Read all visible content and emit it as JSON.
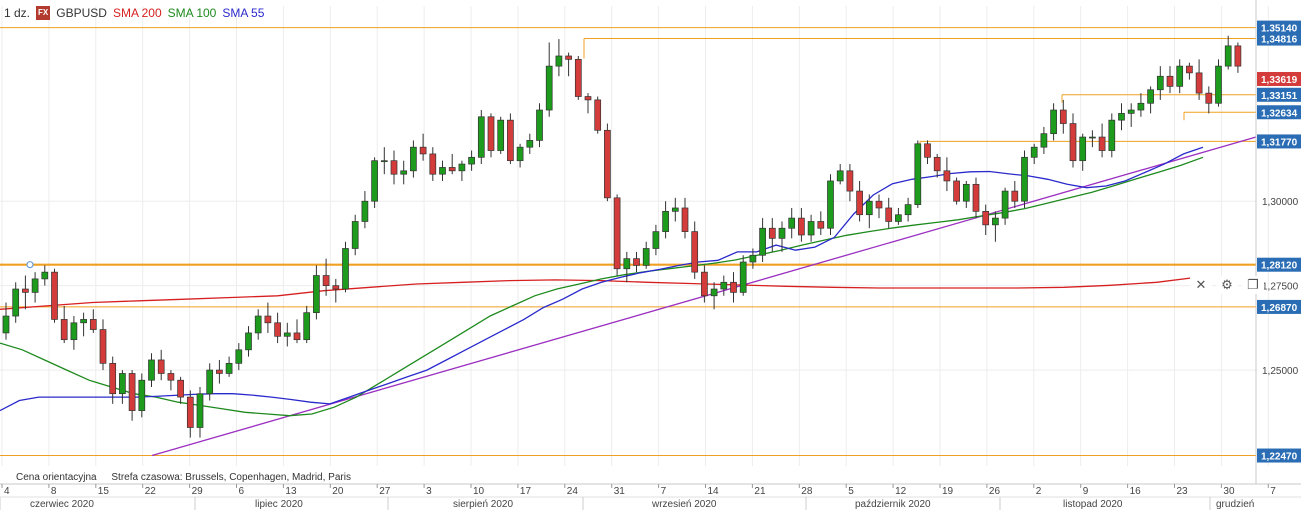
{
  "header": {
    "timeframe": "1 dz.",
    "badge": "FX",
    "symbol": "GBPUSD",
    "indicators": [
      {
        "label": "SMA 200",
        "color": "#d62020"
      },
      {
        "label": "SMA 100",
        "color": "#1e8a1e"
      },
      {
        "label": "SMA 55",
        "color": "#2a2acc"
      }
    ]
  },
  "footer": {
    "price_note": "Cena orientacyjna",
    "timezone": "Strefa czasowa: Brussels, Copenhagen, Madrid, Paris"
  },
  "controls": {
    "close": "✕",
    "settings": "⚙",
    "restore": "❐"
  },
  "icons": [
    "close-icon",
    "gear-icon",
    "restore-icon"
  ],
  "chart_data": {
    "type": "candlestick",
    "x_tick_labels": [
      "4",
      "8",
      "15",
      "22",
      "29",
      "6",
      "13",
      "20",
      "27",
      "3",
      "10",
      "17",
      "24",
      "31",
      "7",
      "14",
      "21",
      "28",
      "5",
      "12",
      "19",
      "26",
      "2",
      "9",
      "16",
      "23",
      "30",
      "7"
    ],
    "month_labels": [
      "czerwiec 2020",
      "lipiec 2020",
      "sierpień 2020",
      "wrzesień 2020",
      "październik 2020",
      "listopad 2020",
      "grudzień"
    ],
    "y_tick_labels": [
      "1,30000",
      "1,27500",
      "1,25000"
    ],
    "level_labels": [
      {
        "label": "1,35140",
        "value": 1.3514
      },
      {
        "label": "1,34816",
        "value": 1.34816
      },
      {
        "label": "1,33151",
        "value": 1.33151
      },
      {
        "label": "1,32634",
        "value": 1.32634
      },
      {
        "label": "1,31770",
        "value": 1.3177
      },
      {
        "label": "1,28120",
        "value": 1.2812
      },
      {
        "label": "1,26870",
        "value": 1.2687
      },
      {
        "label": "1,22470",
        "value": 1.2247
      }
    ],
    "last_price_label": "1,33619",
    "last_price": 1.33619,
    "ylim": [
      1.2216,
      1.3578
    ],
    "colors": {
      "up": "#1c9b1c",
      "down": "#d43c3c",
      "levels": "#f0a020",
      "trendline": "#9b2fc0",
      "grid": "#ededed"
    },
    "candles": [
      [
        1.261,
        1.27,
        1.259,
        1.266
      ],
      [
        1.266,
        1.276,
        1.264,
        1.274
      ],
      [
        1.274,
        1.278,
        1.268,
        1.273
      ],
      [
        1.273,
        1.279,
        1.27,
        1.277
      ],
      [
        1.277,
        1.281,
        1.275,
        1.279
      ],
      [
        1.279,
        1.28,
        1.264,
        1.265
      ],
      [
        1.265,
        1.269,
        1.258,
        1.259
      ],
      [
        1.259,
        1.266,
        1.256,
        1.264
      ],
      [
        1.264,
        1.267,
        1.26,
        1.265
      ],
      [
        1.265,
        1.268,
        1.261,
        1.262
      ],
      [
        1.262,
        1.265,
        1.25,
        1.252
      ],
      [
        1.252,
        1.254,
        1.24,
        1.243
      ],
      [
        1.243,
        1.25,
        1.24,
        1.249
      ],
      [
        1.249,
        1.25,
        1.235,
        1.238
      ],
      [
        1.238,
        1.249,
        1.236,
        1.247
      ],
      [
        1.247,
        1.255,
        1.245,
        1.253
      ],
      [
        1.253,
        1.256,
        1.247,
        1.249
      ],
      [
        1.249,
        1.25,
        1.244,
        1.247
      ],
      [
        1.247,
        1.248,
        1.24,
        1.242
      ],
      [
        1.242,
        1.244,
        1.23,
        1.233
      ],
      [
        1.233,
        1.245,
        1.23,
        1.243
      ],
      [
        1.243,
        1.252,
        1.241,
        1.25
      ],
      [
        1.25,
        1.253,
        1.246,
        1.249
      ],
      [
        1.249,
        1.254,
        1.248,
        1.252
      ],
      [
        1.252,
        1.258,
        1.25,
        1.256
      ],
      [
        1.256,
        1.263,
        1.254,
        1.261
      ],
      [
        1.261,
        1.268,
        1.259,
        1.266
      ],
      [
        1.266,
        1.27,
        1.261,
        1.264
      ],
      [
        1.264,
        1.267,
        1.258,
        1.26
      ],
      [
        1.26,
        1.264,
        1.257,
        1.261
      ],
      [
        1.261,
        1.265,
        1.258,
        1.259
      ],
      [
        1.259,
        1.269,
        1.258,
        1.267
      ],
      [
        1.267,
        1.281,
        1.265,
        1.278
      ],
      [
        1.278,
        1.283,
        1.272,
        1.275
      ],
      [
        1.275,
        1.277,
        1.27,
        1.274
      ],
      [
        1.274,
        1.288,
        1.273,
        1.286
      ],
      [
        1.286,
        1.296,
        1.284,
        1.294
      ],
      [
        1.294,
        1.303,
        1.292,
        1.3
      ],
      [
        1.3,
        1.313,
        1.298,
        1.312
      ],
      [
        1.312,
        1.316,
        1.308,
        1.312
      ],
      [
        1.312,
        1.315,
        1.305,
        1.308
      ],
      [
        1.308,
        1.312,
        1.305,
        1.309
      ],
      [
        1.309,
        1.318,
        1.307,
        1.316
      ],
      [
        1.316,
        1.32,
        1.312,
        1.314
      ],
      [
        1.314,
        1.316,
        1.306,
        1.308
      ],
      [
        1.308,
        1.312,
        1.306,
        1.31
      ],
      [
        1.31,
        1.314,
        1.308,
        1.309
      ],
      [
        1.309,
        1.312,
        1.306,
        1.311
      ],
      [
        1.311,
        1.315,
        1.309,
        1.313
      ],
      [
        1.313,
        1.327,
        1.311,
        1.325
      ],
      [
        1.325,
        1.326,
        1.313,
        1.315
      ],
      [
        1.315,
        1.325,
        1.314,
        1.324
      ],
      [
        1.324,
        1.326,
        1.311,
        1.312
      ],
      [
        1.312,
        1.317,
        1.31,
        1.316
      ],
      [
        1.316,
        1.32,
        1.314,
        1.318
      ],
      [
        1.318,
        1.329,
        1.316,
        1.327
      ],
      [
        1.327,
        1.347,
        1.325,
        1.34
      ],
      [
        1.34,
        1.348,
        1.337,
        1.343
      ],
      [
        1.343,
        1.344,
        1.337,
        1.342
      ],
      [
        1.342,
        1.343,
        1.33,
        1.331
      ],
      [
        1.331,
        1.332,
        1.326,
        1.33
      ],
      [
        1.33,
        1.331,
        1.32,
        1.321
      ],
      [
        1.321,
        1.323,
        1.3,
        1.301
      ],
      [
        1.301,
        1.302,
        1.278,
        1.28
      ],
      [
        1.28,
        1.285,
        1.276,
        1.283
      ],
      [
        1.283,
        1.285,
        1.279,
        1.281
      ],
      [
        1.281,
        1.288,
        1.28,
        1.286
      ],
      [
        1.286,
        1.293,
        1.284,
        1.291
      ],
      [
        1.291,
        1.3,
        1.289,
        1.297
      ],
      [
        1.297,
        1.301,
        1.294,
        1.298
      ],
      [
        1.298,
        1.301,
        1.289,
        1.291
      ],
      [
        1.291,
        1.294,
        1.277,
        1.279
      ],
      [
        1.279,
        1.281,
        1.27,
        1.272
      ],
      [
        1.272,
        1.276,
        1.268,
        1.274
      ],
      [
        1.274,
        1.278,
        1.272,
        1.276
      ],
      [
        1.276,
        1.279,
        1.27,
        1.273
      ],
      [
        1.273,
        1.284,
        1.272,
        1.282
      ],
      [
        1.282,
        1.286,
        1.28,
        1.284
      ],
      [
        1.284,
        1.295,
        1.282,
        1.292
      ],
      [
        1.292,
        1.295,
        1.285,
        1.289
      ],
      [
        1.289,
        1.294,
        1.285,
        1.292
      ],
      [
        1.292,
        1.298,
        1.289,
        1.295
      ],
      [
        1.295,
        1.298,
        1.288,
        1.29
      ],
      [
        1.29,
        1.296,
        1.288,
        1.294
      ],
      [
        1.294,
        1.297,
        1.29,
        1.292
      ],
      [
        1.292,
        1.308,
        1.29,
        1.306
      ],
      [
        1.306,
        1.311,
        1.305,
        1.309
      ],
      [
        1.309,
        1.311,
        1.3,
        1.303
      ],
      [
        1.303,
        1.306,
        1.294,
        1.296
      ],
      [
        1.296,
        1.302,
        1.292,
        1.3
      ],
      [
        1.3,
        1.302,
        1.295,
        1.298
      ],
      [
        1.298,
        1.301,
        1.292,
        1.294
      ],
      [
        1.294,
        1.298,
        1.293,
        1.296
      ],
      [
        1.296,
        1.301,
        1.294,
        1.299
      ],
      [
        1.299,
        1.318,
        1.298,
        1.317
      ],
      [
        1.317,
        1.318,
        1.311,
        1.313
      ],
      [
        1.313,
        1.314,
        1.307,
        1.309
      ],
      [
        1.309,
        1.313,
        1.303,
        1.306
      ],
      [
        1.306,
        1.307,
        1.299,
        1.3
      ],
      [
        1.3,
        1.306,
        1.298,
        1.305
      ],
      [
        1.305,
        1.307,
        1.295,
        1.297
      ],
      [
        1.297,
        1.299,
        1.29,
        1.293
      ],
      [
        1.293,
        1.297,
        1.288,
        1.295
      ],
      [
        1.295,
        1.304,
        1.293,
        1.303
      ],
      [
        1.303,
        1.306,
        1.298,
        1.3
      ],
      [
        1.3,
        1.315,
        1.298,
        1.313
      ],
      [
        1.313,
        1.317,
        1.311,
        1.316
      ],
      [
        1.316,
        1.322,
        1.314,
        1.32
      ],
      [
        1.32,
        1.329,
        1.318,
        1.327
      ],
      [
        1.327,
        1.33,
        1.32,
        1.323
      ],
      [
        1.323,
        1.326,
        1.31,
        1.312
      ],
      [
        1.312,
        1.32,
        1.309,
        1.319
      ],
      [
        1.319,
        1.321,
        1.316,
        1.319
      ],
      [
        1.319,
        1.323,
        1.313,
        1.315
      ],
      [
        1.315,
        1.326,
        1.313,
        1.324
      ],
      [
        1.324,
        1.329,
        1.321,
        1.326
      ],
      [
        1.326,
        1.329,
        1.322,
        1.327
      ],
      [
        1.327,
        1.332,
        1.325,
        1.329
      ],
      [
        1.329,
        1.334,
        1.326,
        1.333
      ],
      [
        1.333,
        1.34,
        1.33,
        1.337
      ],
      [
        1.337,
        1.34,
        1.332,
        1.334
      ],
      [
        1.334,
        1.342,
        1.332,
        1.34
      ],
      [
        1.34,
        1.341,
        1.336,
        1.338
      ],
      [
        1.338,
        1.342,
        1.33,
        1.332
      ],
      [
        1.332,
        1.334,
        1.326,
        1.329
      ],
      [
        1.329,
        1.342,
        1.328,
        1.34
      ],
      [
        1.34,
        1.349,
        1.339,
        1.346
      ],
      [
        1.346,
        1.347,
        1.338,
        1.34
      ]
    ],
    "sma55": [
      1.238,
      1.241,
      1.242,
      1.242,
      1.242,
      1.242,
      1.242,
      1.242,
      1.2422,
      1.2425,
      1.2428,
      1.243,
      1.243,
      1.2426,
      1.242,
      1.2413,
      1.2405,
      1.24,
      1.242,
      1.244,
      1.246,
      1.248,
      1.25,
      1.253,
      1.256,
      1.259,
      1.262,
      1.265,
      1.2685,
      1.271,
      1.274,
      1.276,
      1.2775,
      1.2788,
      1.2798,
      1.281,
      1.282,
      1.2825,
      1.285,
      1.285,
      1.287,
      1.2855,
      1.2864,
      1.2893,
      1.2962,
      1.3018,
      1.3052,
      1.3065,
      1.3073,
      1.3082,
      1.3087,
      1.3088,
      1.3081,
      1.3075,
      1.3065,
      1.305,
      1.304,
      1.3045,
      1.306,
      1.3085,
      1.311,
      1.314,
      1.316
    ],
    "sma100": [
      1.258,
      1.256,
      1.253,
      1.25,
      1.247,
      1.245,
      1.243,
      1.242,
      1.2405,
      1.2395,
      1.2385,
      1.2375,
      1.237,
      1.2365,
      1.237,
      1.239,
      1.242,
      1.246,
      1.25,
      1.254,
      1.258,
      1.262,
      1.266,
      1.269,
      1.272,
      1.274,
      1.2755,
      1.277,
      1.2782,
      1.2792,
      1.28,
      1.2808,
      1.2816,
      1.2826,
      1.284,
      1.2854,
      1.287,
      1.2885,
      1.2899,
      1.291,
      1.292,
      1.2929,
      1.2937,
      1.2945,
      1.2956,
      1.2966,
      1.2978,
      1.2994,
      1.301,
      1.3026,
      1.3046,
      1.3066,
      1.3086,
      1.3106,
      1.313
    ],
    "sma200": [
      1.268,
      1.269,
      1.27,
      1.2705,
      1.271,
      1.2715,
      1.272,
      1.2735,
      1.2745,
      1.2755,
      1.276,
      1.2765,
      1.2767,
      1.2765,
      1.276,
      1.2756,
      1.2752,
      1.2748,
      1.2745,
      1.2743,
      1.2743,
      1.2743,
      1.2743,
      1.2745,
      1.2751,
      1.276,
      1.2777
    ],
    "trendline": [
      [
        1.2247,
        1.319
      ]
    ]
  }
}
